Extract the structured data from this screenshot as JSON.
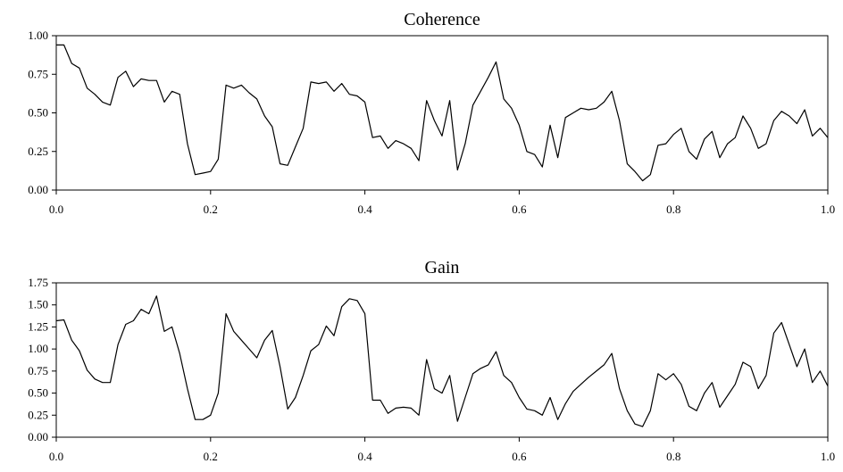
{
  "chart_data": [
    {
      "type": "line",
      "title": "Coherence",
      "xlabel": "",
      "ylabel": "",
      "xlim": [
        0,
        1
      ],
      "ylim": [
        0,
        1
      ],
      "grid": false,
      "x_ticks": [
        "0.0",
        "0.2",
        "0.4",
        "0.6",
        "0.8",
        "1.0"
      ],
      "y_ticks": [
        "0.00",
        "0.25",
        "0.50",
        "0.75",
        "1.00"
      ],
      "series": [
        {
          "color": "#000000",
          "x": [
            0.0,
            0.01,
            0.02,
            0.03,
            0.04,
            0.05,
            0.06,
            0.07,
            0.08,
            0.09,
            0.1,
            0.11,
            0.12,
            0.13,
            0.14,
            0.15,
            0.16,
            0.17,
            0.18,
            0.19,
            0.2,
            0.21,
            0.22,
            0.23,
            0.24,
            0.25,
            0.26,
            0.27,
            0.28,
            0.29,
            0.3,
            0.31,
            0.32,
            0.33,
            0.34,
            0.35,
            0.36,
            0.37,
            0.38,
            0.39,
            0.4,
            0.41,
            0.42,
            0.43,
            0.44,
            0.45,
            0.46,
            0.47,
            0.48,
            0.49,
            0.5,
            0.51,
            0.52,
            0.53,
            0.54,
            0.55,
            0.56,
            0.57,
            0.58,
            0.59,
            0.6,
            0.61,
            0.62,
            0.63,
            0.64,
            0.65,
            0.66,
            0.67,
            0.68,
            0.69,
            0.7,
            0.71,
            0.72,
            0.73,
            0.74,
            0.75,
            0.76,
            0.77,
            0.78,
            0.79,
            0.8,
            0.81,
            0.82,
            0.83,
            0.84,
            0.85,
            0.86,
            0.87,
            0.88,
            0.89,
            0.9,
            0.91,
            0.92,
            0.93,
            0.94,
            0.95,
            0.96,
            0.97,
            0.98,
            0.99,
            1.0
          ],
          "y": [
            0.94,
            0.94,
            0.82,
            0.79,
            0.66,
            0.62,
            0.57,
            0.55,
            0.73,
            0.77,
            0.67,
            0.72,
            0.71,
            0.71,
            0.57,
            0.64,
            0.62,
            0.3,
            0.1,
            0.11,
            0.12,
            0.2,
            0.68,
            0.66,
            0.68,
            0.63,
            0.59,
            0.48,
            0.41,
            0.17,
            0.16,
            0.28,
            0.4,
            0.7,
            0.69,
            0.7,
            0.64,
            0.69,
            0.62,
            0.61,
            0.57,
            0.34,
            0.35,
            0.27,
            0.32,
            0.3,
            0.27,
            0.19,
            0.58,
            0.45,
            0.35,
            0.58,
            0.13,
            0.3,
            0.55,
            0.64,
            0.73,
            0.83,
            0.59,
            0.53,
            0.42,
            0.25,
            0.23,
            0.15,
            0.42,
            0.21,
            0.47,
            0.5,
            0.53,
            0.52,
            0.53,
            0.57,
            0.64,
            0.45,
            0.17,
            0.12,
            0.06,
            0.1,
            0.29,
            0.3,
            0.36,
            0.4,
            0.25,
            0.2,
            0.33,
            0.38,
            0.21,
            0.3,
            0.34,
            0.48,
            0.4,
            0.27,
            0.3,
            0.45,
            0.51,
            0.48,
            0.43,
            0.52,
            0.35,
            0.4,
            0.34
          ]
        }
      ]
    },
    {
      "type": "line",
      "title": "Gain",
      "xlabel": "",
      "ylabel": "",
      "xlim": [
        0,
        1
      ],
      "ylim": [
        0,
        1.75
      ],
      "grid": false,
      "x_ticks": [
        "0.0",
        "0.2",
        "0.4",
        "0.6",
        "0.8",
        "1.0"
      ],
      "y_ticks": [
        "0.00",
        "0.25",
        "0.50",
        "0.75",
        "1.00",
        "1.25",
        "1.50",
        "1.75"
      ],
      "series": [
        {
          "color": "#000000",
          "x": [
            0.0,
            0.01,
            0.02,
            0.03,
            0.04,
            0.05,
            0.06,
            0.07,
            0.08,
            0.09,
            0.1,
            0.11,
            0.12,
            0.13,
            0.14,
            0.15,
            0.16,
            0.17,
            0.18,
            0.19,
            0.2,
            0.21,
            0.22,
            0.23,
            0.24,
            0.25,
            0.26,
            0.27,
            0.28,
            0.29,
            0.3,
            0.31,
            0.32,
            0.33,
            0.34,
            0.35,
            0.36,
            0.37,
            0.38,
            0.39,
            0.4,
            0.41,
            0.42,
            0.43,
            0.44,
            0.45,
            0.46,
            0.47,
            0.48,
            0.49,
            0.5,
            0.51,
            0.52,
            0.53,
            0.54,
            0.55,
            0.56,
            0.57,
            0.58,
            0.59,
            0.6,
            0.61,
            0.62,
            0.63,
            0.64,
            0.65,
            0.66,
            0.67,
            0.68,
            0.69,
            0.7,
            0.71,
            0.72,
            0.73,
            0.74,
            0.75,
            0.76,
            0.77,
            0.78,
            0.79,
            0.8,
            0.81,
            0.82,
            0.83,
            0.84,
            0.85,
            0.86,
            0.87,
            0.88,
            0.89,
            0.9,
            0.91,
            0.92,
            0.93,
            0.94,
            0.95,
            0.96,
            0.97,
            0.98,
            0.99,
            1.0
          ],
          "y": [
            1.32,
            1.33,
            1.1,
            0.98,
            0.76,
            0.66,
            0.62,
            0.62,
            1.05,
            1.28,
            1.32,
            1.45,
            1.4,
            1.6,
            1.2,
            1.25,
            0.95,
            0.55,
            0.2,
            0.2,
            0.25,
            0.5,
            1.4,
            1.2,
            1.1,
            1.0,
            0.9,
            1.1,
            1.21,
            0.8,
            0.32,
            0.45,
            0.7,
            0.98,
            1.05,
            1.26,
            1.15,
            1.48,
            1.57,
            1.55,
            1.4,
            0.42,
            0.42,
            0.27,
            0.33,
            0.34,
            0.33,
            0.25,
            0.88,
            0.55,
            0.5,
            0.7,
            0.18,
            0.45,
            0.72,
            0.78,
            0.82,
            0.97,
            0.7,
            0.62,
            0.45,
            0.32,
            0.3,
            0.25,
            0.45,
            0.2,
            0.38,
            0.52,
            0.6,
            0.68,
            0.75,
            0.82,
            0.95,
            0.55,
            0.3,
            0.15,
            0.12,
            0.3,
            0.72,
            0.65,
            0.72,
            0.6,
            0.35,
            0.3,
            0.5,
            0.62,
            0.34,
            0.47,
            0.6,
            0.85,
            0.8,
            0.55,
            0.7,
            1.18,
            1.3,
            1.05,
            0.8,
            1.0,
            0.62,
            0.75,
            0.58
          ]
        }
      ]
    }
  ]
}
